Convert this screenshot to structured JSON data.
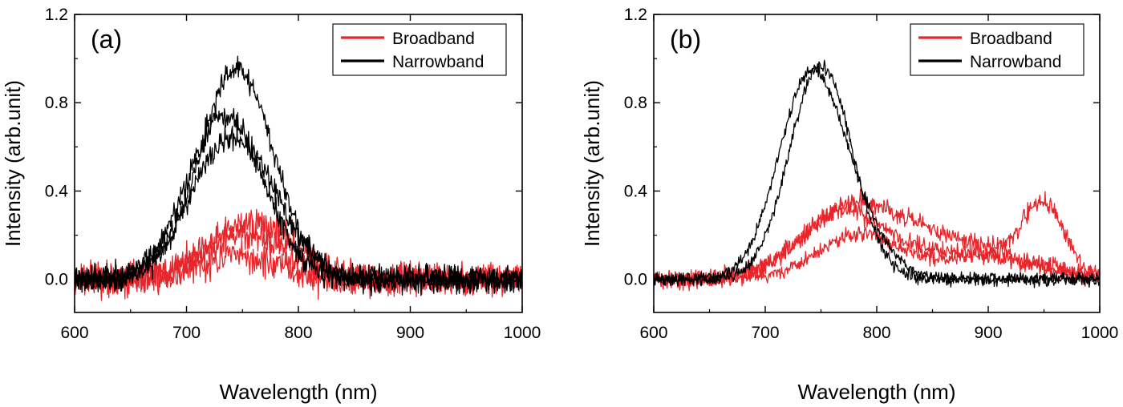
{
  "chart_data": [
    {
      "type": "line",
      "panel_label": "(a)",
      "xlabel": "Wavelength (nm)",
      "ylabel": "Intensity (arb.unit)",
      "xlim": [
        600,
        1000
      ],
      "ylim": [
        -0.15,
        1.2
      ],
      "xticks": [
        600,
        700,
        800,
        900,
        1000
      ],
      "xtick_labels": [
        "600",
        "700",
        "800",
        "900",
        "1000"
      ],
      "yticks": [
        0.0,
        0.4,
        0.8,
        1.2
      ],
      "ytick_labels": [
        "0.0",
        "0.4",
        "0.8",
        "1.2"
      ],
      "legend_position": "top-right",
      "legend": [
        {
          "label": "Broadband",
          "color": "#e8252a"
        },
        {
          "label": "Narrowband",
          "color": "#000000"
        }
      ],
      "series": [
        {
          "group": "Broadband",
          "color": "#e8252a",
          "peaks": [
            {
              "center": 760,
              "width": 38,
              "height": 0.26
            }
          ],
          "noise": 0.05,
          "seed": 11
        },
        {
          "group": "Broadband",
          "color": "#e8252a",
          "peaks": [
            {
              "center": 752,
              "width": 36,
              "height": 0.2
            }
          ],
          "noise": 0.05,
          "seed": 12
        },
        {
          "group": "Broadband",
          "color": "#e8252a",
          "peaks": [
            {
              "center": 745,
              "width": 34,
              "height": 0.1
            }
          ],
          "noise": 0.05,
          "seed": 13
        },
        {
          "group": "Narrowband",
          "color": "#000000",
          "peaks": [
            {
              "center": 745,
              "width": 33,
              "height": 0.95
            }
          ],
          "noise": 0.04,
          "seed": 21
        },
        {
          "group": "Narrowband",
          "color": "#000000",
          "peaks": [
            {
              "center": 735,
              "width": 34,
              "height": 0.74
            }
          ],
          "noise": 0.04,
          "seed": 22
        },
        {
          "group": "Narrowband",
          "color": "#000000",
          "peaks": [
            {
              "center": 742,
              "width": 38,
              "height": 0.64
            }
          ],
          "noise": 0.04,
          "seed": 23
        }
      ]
    },
    {
      "type": "line",
      "panel_label": "(b)",
      "xlabel": "Wavelength (nm)",
      "ylabel": "Intensity (arb.unit)",
      "xlim": [
        600,
        1000
      ],
      "ylim": [
        -0.15,
        1.2
      ],
      "xticks": [
        600,
        700,
        800,
        900,
        1000
      ],
      "xtick_labels": [
        "600",
        "700",
        "800",
        "900",
        "1000"
      ],
      "yticks": [
        0.0,
        0.4,
        0.8,
        1.2
      ],
      "ytick_labels": [
        "0.0",
        "0.4",
        "0.8",
        "1.2"
      ],
      "legend_position": "top-right",
      "legend": [
        {
          "label": "Broadband",
          "color": "#e8252a"
        },
        {
          "label": "Narrowband",
          "color": "#000000"
        }
      ],
      "series": [
        {
          "group": "Broadband",
          "color": "#e8252a",
          "peaks": [
            {
              "center": 780,
              "width": 45,
              "height": 0.33
            },
            {
              "center": 950,
              "width": 18,
              "height": 0.3
            },
            {
              "center": 880,
              "width": 50,
              "height": 0.15
            }
          ],
          "noise": 0.03,
          "seed": 31
        },
        {
          "group": "Broadband",
          "color": "#e8252a",
          "peaks": [
            {
              "center": 770,
              "width": 40,
              "height": 0.3
            },
            {
              "center": 890,
              "width": 55,
              "height": 0.12
            }
          ],
          "noise": 0.03,
          "seed": 32
        },
        {
          "group": "Broadband",
          "color": "#e8252a",
          "peaks": [
            {
              "center": 785,
              "width": 38,
              "height": 0.2
            },
            {
              "center": 900,
              "width": 45,
              "height": 0.1
            }
          ],
          "noise": 0.025,
          "seed": 33
        },
        {
          "group": "Narrowband",
          "color": "#000000",
          "peaks": [
            {
              "center": 750,
              "width": 28,
              "height": 0.97
            }
          ],
          "noise": 0.02,
          "seed": 41
        },
        {
          "group": "Narrowband",
          "color": "#000000",
          "peaks": [
            {
              "center": 738,
              "width": 28,
              "height": 0.82
            },
            {
              "center": 775,
              "width": 30,
              "height": 0.25
            }
          ],
          "noise": 0.02,
          "seed": 42
        }
      ]
    }
  ]
}
